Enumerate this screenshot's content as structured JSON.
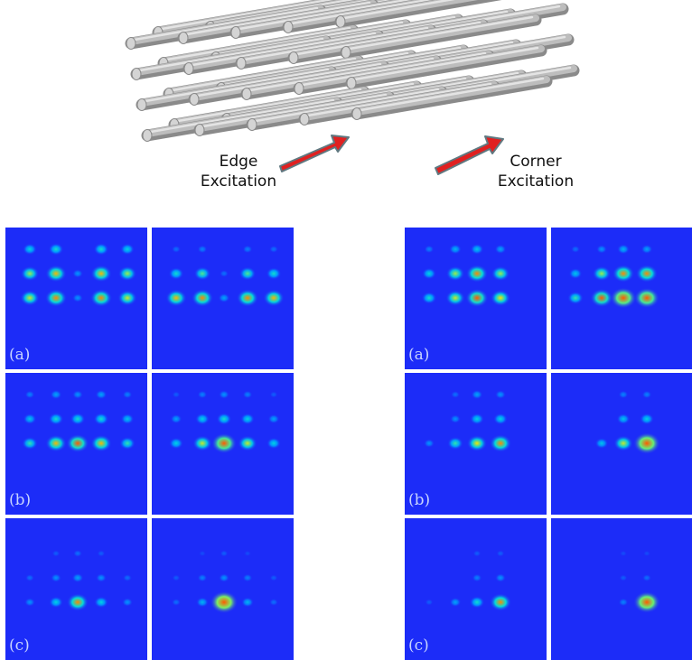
{
  "labels": {
    "edge": [
      "Edge",
      "Excitation"
    ],
    "corner": [
      "Corner",
      "Excitation"
    ]
  },
  "panel_tags": [
    "(a)",
    "(b)",
    "(c)"
  ],
  "colors": {
    "panel_background": "#1c2cf8",
    "rod": "#bdbdbd",
    "arrow": "#e02020",
    "arrow_outline": "#607880"
  },
  "groups": [
    {
      "name": "edge",
      "rows": [
        {
          "tag": "(a)",
          "panels": [
            {
              "spots": [
                [
                  1,
                  1,
                  0.5
                ],
                [
                  2,
                  1,
                  0.55
                ],
                [
                  4,
                  1,
                  0.55
                ],
                [
                  5,
                  1,
                  0.5
                ],
                [
                  1,
                  2,
                  0.75
                ],
                [
                  2,
                  2,
                  0.9
                ],
                [
                  3,
                  2,
                  0.3
                ],
                [
                  4,
                  2,
                  0.9
                ],
                [
                  5,
                  2,
                  0.75
                ],
                [
                  1,
                  3,
                  0.8
                ],
                [
                  2,
                  3,
                  0.95
                ],
                [
                  3,
                  3,
                  0.3
                ],
                [
                  4,
                  3,
                  0.95
                ],
                [
                  5,
                  3,
                  0.8
                ]
              ]
            },
            {
              "spots": [
                [
                  1,
                  1,
                  0.2
                ],
                [
                  2,
                  1,
                  0.25
                ],
                [
                  4,
                  1,
                  0.25
                ],
                [
                  5,
                  1,
                  0.2
                ],
                [
                  1,
                  2,
                  0.55
                ],
                [
                  2,
                  2,
                  0.65
                ],
                [
                  3,
                  2,
                  0.2
                ],
                [
                  4,
                  2,
                  0.65
                ],
                [
                  5,
                  2,
                  0.55
                ],
                [
                  1,
                  3,
                  0.9
                ],
                [
                  2,
                  3,
                  0.95
                ],
                [
                  3,
                  3,
                  0.35
                ],
                [
                  4,
                  3,
                  0.95
                ],
                [
                  5,
                  3,
                  0.9
                ]
              ]
            }
          ]
        },
        {
          "tag": "(b)",
          "panels": [
            {
              "spots": [
                [
                  1,
                  1,
                  0.25
                ],
                [
                  2,
                  1,
                  0.35
                ],
                [
                  3,
                  1,
                  0.3
                ],
                [
                  4,
                  1,
                  0.35
                ],
                [
                  5,
                  1,
                  0.25
                ],
                [
                  1,
                  2,
                  0.45
                ],
                [
                  2,
                  2,
                  0.55
                ],
                [
                  3,
                  2,
                  0.55
                ],
                [
                  4,
                  2,
                  0.55
                ],
                [
                  5,
                  2,
                  0.45
                ],
                [
                  1,
                  3,
                  0.6
                ],
                [
                  2,
                  3,
                  0.9
                ],
                [
                  3,
                  3,
                  1.0
                ],
                [
                  4,
                  3,
                  0.9
                ],
                [
                  5,
                  3,
                  0.6
                ]
              ]
            },
            {
              "spots": [
                [
                  1,
                  1,
                  0.15
                ],
                [
                  2,
                  1,
                  0.25
                ],
                [
                  3,
                  1,
                  0.3
                ],
                [
                  4,
                  1,
                  0.25
                ],
                [
                  5,
                  1,
                  0.15
                ],
                [
                  1,
                  2,
                  0.35
                ],
                [
                  2,
                  2,
                  0.5
                ],
                [
                  3,
                  2,
                  0.55
                ],
                [
                  4,
                  2,
                  0.5
                ],
                [
                  5,
                  2,
                  0.35
                ],
                [
                  1,
                  3,
                  0.5
                ],
                [
                  2,
                  3,
                  0.8
                ],
                [
                  3,
                  3,
                  1.15
                ],
                [
                  4,
                  3,
                  0.8
                ],
                [
                  5,
                  3,
                  0.5
                ]
              ]
            }
          ]
        },
        {
          "tag": "(c)",
          "panels": [
            {
              "spots": [
                [
                  2,
                  1,
                  0.15
                ],
                [
                  3,
                  1,
                  0.2
                ],
                [
                  4,
                  1,
                  0.15
                ],
                [
                  1,
                  2,
                  0.2
                ],
                [
                  2,
                  2,
                  0.3
                ],
                [
                  3,
                  2,
                  0.35
                ],
                [
                  4,
                  2,
                  0.3
                ],
                [
                  5,
                  2,
                  0.2
                ],
                [
                  1,
                  3,
                  0.3
                ],
                [
                  2,
                  3,
                  0.5
                ],
                [
                  3,
                  3,
                  0.95
                ],
                [
                  4,
                  3,
                  0.5
                ],
                [
                  5,
                  3,
                  0.3
                ]
              ]
            },
            {
              "spots": [
                [
                  2,
                  1,
                  0.1
                ],
                [
                  3,
                  1,
                  0.15
                ],
                [
                  4,
                  1,
                  0.1
                ],
                [
                  1,
                  2,
                  0.15
                ],
                [
                  2,
                  2,
                  0.25
                ],
                [
                  3,
                  2,
                  0.3
                ],
                [
                  4,
                  2,
                  0.25
                ],
                [
                  5,
                  2,
                  0.15
                ],
                [
                  1,
                  3,
                  0.2
                ],
                [
                  2,
                  3,
                  0.4
                ],
                [
                  3,
                  3,
                  1.3
                ],
                [
                  4,
                  3,
                  0.4
                ],
                [
                  5,
                  3,
                  0.2
                ]
              ]
            }
          ]
        }
      ]
    },
    {
      "name": "corner",
      "rows": [
        {
          "tag": "(a)",
          "panels": [
            {
              "spots": [
                [
                  1,
                  1,
                  0.25
                ],
                [
                  2,
                  1,
                  0.4
                ],
                [
                  3,
                  1,
                  0.45
                ],
                [
                  4,
                  1,
                  0.35
                ],
                [
                  1,
                  2,
                  0.5
                ],
                [
                  2,
                  2,
                  0.75
                ],
                [
                  3,
                  2,
                  0.95
                ],
                [
                  4,
                  2,
                  0.75
                ],
                [
                  1,
                  3,
                  0.55
                ],
                [
                  2,
                  3,
                  0.8
                ],
                [
                  3,
                  3,
                  1.0
                ],
                [
                  4,
                  3,
                  0.85
                ]
              ]
            },
            {
              "spots": [
                [
                  1,
                  1,
                  0.2
                ],
                [
                  2,
                  1,
                  0.3
                ],
                [
                  3,
                  1,
                  0.4
                ],
                [
                  4,
                  1,
                  0.35
                ],
                [
                  1,
                  2,
                  0.45
                ],
                [
                  2,
                  2,
                  0.75
                ],
                [
                  3,
                  2,
                  0.95
                ],
                [
                  4,
                  2,
                  0.95
                ],
                [
                  1,
                  3,
                  0.6
                ],
                [
                  2,
                  3,
                  1.0
                ],
                [
                  3,
                  3,
                  1.2
                ],
                [
                  4,
                  3,
                  1.15
                ]
              ]
            }
          ]
        },
        {
          "tag": "(b)",
          "panels": [
            {
              "spots": [
                [
                  2,
                  1,
                  0.2
                ],
                [
                  3,
                  1,
                  0.35
                ],
                [
                  4,
                  1,
                  0.3
                ],
                [
                  2,
                  2,
                  0.3
                ],
                [
                  3,
                  2,
                  0.5
                ],
                [
                  4,
                  2,
                  0.5
                ],
                [
                  1,
                  3,
                  0.3
                ],
                [
                  2,
                  3,
                  0.6
                ],
                [
                  3,
                  3,
                  0.85
                ],
                [
                  4,
                  3,
                  0.95
                ]
              ]
            },
            {
              "spots": [
                [
                  3,
                  1,
                  0.25
                ],
                [
                  4,
                  1,
                  0.25
                ],
                [
                  3,
                  2,
                  0.45
                ],
                [
                  4,
                  2,
                  0.5
                ],
                [
                  2,
                  3,
                  0.45
                ],
                [
                  3,
                  3,
                  0.8
                ],
                [
                  4,
                  3,
                  1.25
                ]
              ]
            }
          ]
        },
        {
          "tag": "(c)",
          "panels": [
            {
              "spots": [
                [
                  3,
                  1,
                  0.15
                ],
                [
                  4,
                  1,
                  0.15
                ],
                [
                  3,
                  2,
                  0.25
                ],
                [
                  4,
                  2,
                  0.3
                ],
                [
                  1,
                  3,
                  0.15
                ],
                [
                  2,
                  3,
                  0.35
                ],
                [
                  3,
                  3,
                  0.55
                ],
                [
                  4,
                  3,
                  0.95
                ]
              ]
            },
            {
              "spots": [
                [
                  3,
                  1,
                  0.1
                ],
                [
                  4,
                  1,
                  0.1
                ],
                [
                  3,
                  2,
                  0.15
                ],
                [
                  4,
                  2,
                  0.2
                ],
                [
                  3,
                  3,
                  0.25
                ],
                [
                  4,
                  3,
                  1.25
                ]
              ]
            }
          ]
        }
      ]
    }
  ]
}
